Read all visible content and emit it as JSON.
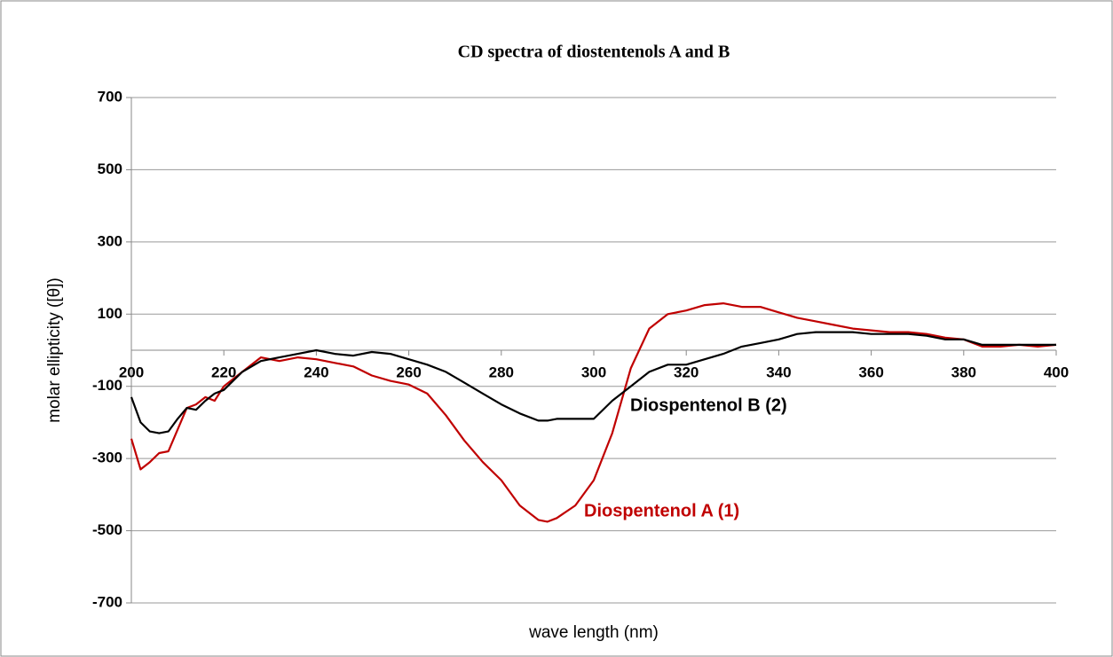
{
  "chart_data": {
    "type": "line",
    "title": "CD spectra of diostentenols A and B",
    "x_label": "wave length  (nm)",
    "y_label": "molar ellipticity  ([θ])",
    "x": [
      200,
      202,
      204,
      206,
      208,
      210,
      212,
      214,
      216,
      218,
      220,
      224,
      228,
      232,
      236,
      240,
      244,
      248,
      252,
      256,
      260,
      264,
      268,
      272,
      276,
      280,
      284,
      288,
      290,
      292,
      296,
      300,
      304,
      308,
      312,
      316,
      320,
      324,
      328,
      332,
      336,
      340,
      344,
      348,
      352,
      356,
      360,
      364,
      368,
      372,
      376,
      380,
      384,
      388,
      392,
      396,
      400
    ],
    "series": [
      {
        "name": "Diospentenol A (1)",
        "color": "#c00000",
        "values": [
          -245,
          -330,
          -310,
          -285,
          -280,
          -220,
          -160,
          -150,
          -130,
          -140,
          -100,
          -60,
          -20,
          -30,
          -20,
          -25,
          -35,
          -45,
          -70,
          -85,
          -95,
          -120,
          -180,
          -250,
          -310,
          -360,
          -430,
          -470,
          -475,
          -465,
          -430,
          -360,
          -230,
          -50,
          60,
          100,
          110,
          125,
          130,
          120,
          120,
          105,
          90,
          80,
          70,
          60,
          55,
          50,
          50,
          45,
          35,
          30,
          10,
          10,
          15,
          10,
          15
        ]
      },
      {
        "name": "Diospentenol B (2)",
        "color": "#000000",
        "values": [
          -130,
          -200,
          -225,
          -230,
          -225,
          -190,
          -160,
          -165,
          -140,
          -120,
          -110,
          -60,
          -30,
          -20,
          -10,
          0,
          -10,
          -15,
          -5,
          -10,
          -25,
          -40,
          -60,
          -90,
          -120,
          -150,
          -175,
          -195,
          -195,
          -190,
          -190,
          -190,
          -140,
          -100,
          -60,
          -40,
          -40,
          -25,
          -10,
          10,
          20,
          30,
          45,
          50,
          50,
          50,
          45,
          45,
          45,
          40,
          30,
          30,
          15,
          15,
          15,
          15,
          15
        ]
      }
    ],
    "xlim": [
      200,
      400
    ],
    "xticks": [
      200,
      220,
      240,
      260,
      280,
      300,
      320,
      340,
      360,
      380,
      400
    ],
    "ylim": [
      -700,
      700
    ],
    "yticks": [
      -700,
      -500,
      -300,
      -100,
      100,
      300,
      500,
      700
    ],
    "grid": true
  }
}
